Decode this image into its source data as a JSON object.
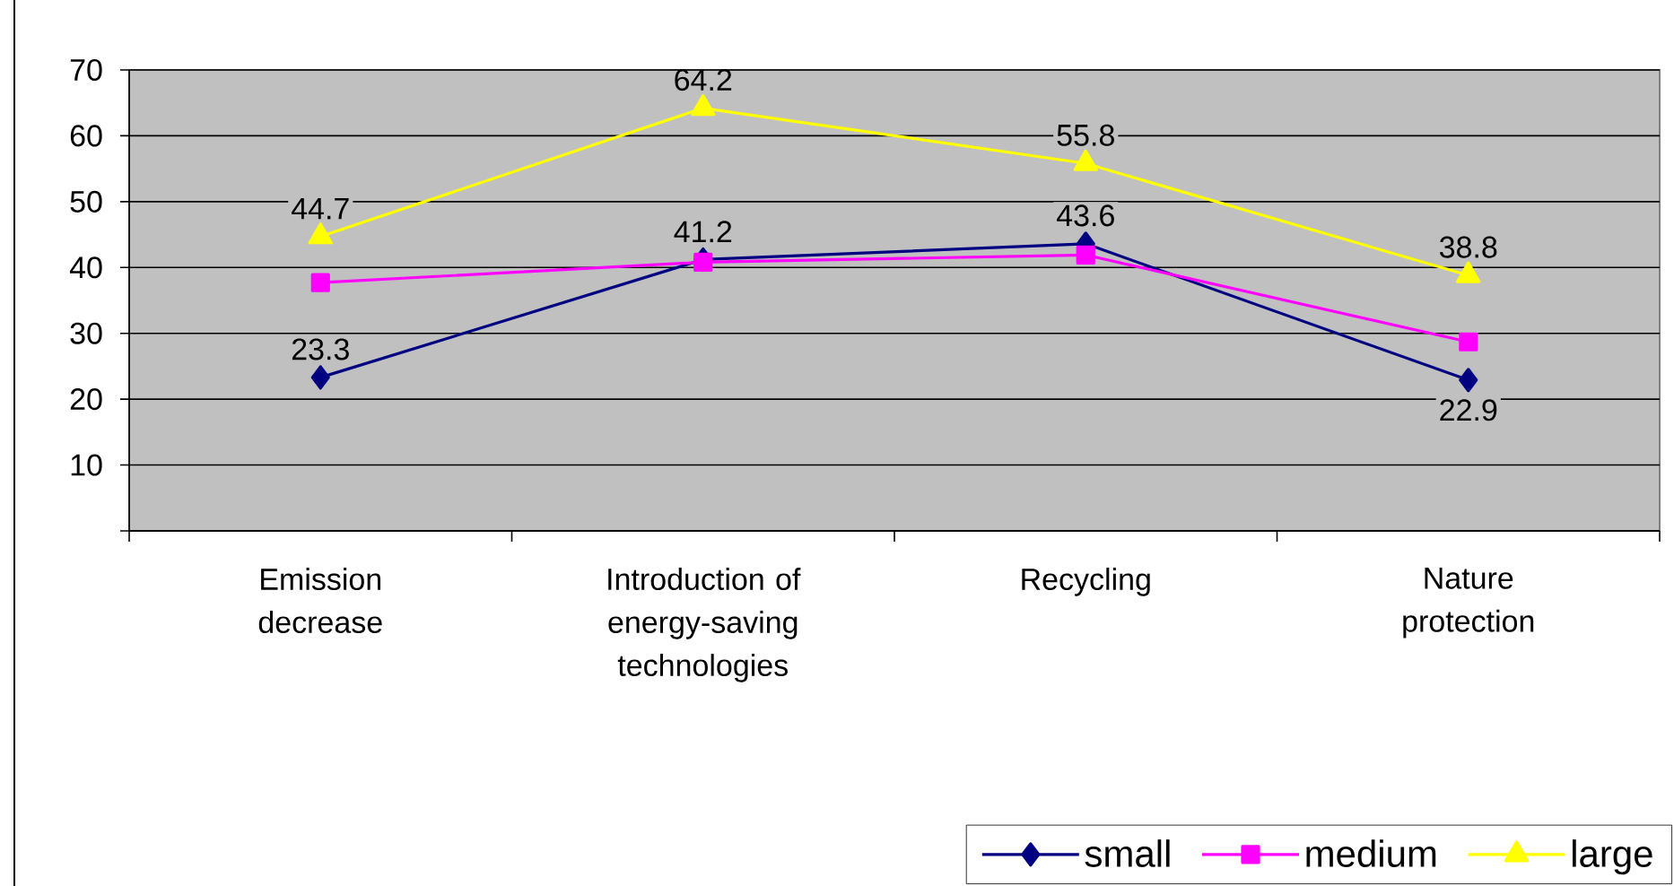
{
  "chart_data": {
    "type": "line",
    "categories": [
      "Emission decrease",
      "Introduction of energy-saving technologies",
      "Recycling",
      "Nature protection"
    ],
    "series": [
      {
        "name": "small",
        "color": "#000080",
        "marker": "diamond",
        "values": [
          23.3,
          41.2,
          43.6,
          22.9
        ],
        "value_labels": [
          "23.3",
          "41.2",
          "43.6",
          "22.9"
        ]
      },
      {
        "name": "medium",
        "color": "#ff00ff",
        "marker": "square",
        "values": [
          37.7,
          40.8,
          41.9,
          28.7
        ]
      },
      {
        "name": "large",
        "color": "#ffff00",
        "marker": "triangle",
        "values": [
          44.7,
          64.2,
          55.8,
          38.8
        ],
        "value_labels": [
          "44.7",
          "64.2",
          "55.8",
          "38.8"
        ]
      }
    ],
    "ylim": [
      0,
      70
    ],
    "yticks": [
      {
        "value": 0,
        "label": null
      },
      10,
      20,
      30,
      40,
      50,
      60,
      70
    ],
    "grid": "y",
    "legend": "bottom right",
    "line_style": "solid"
  }
}
